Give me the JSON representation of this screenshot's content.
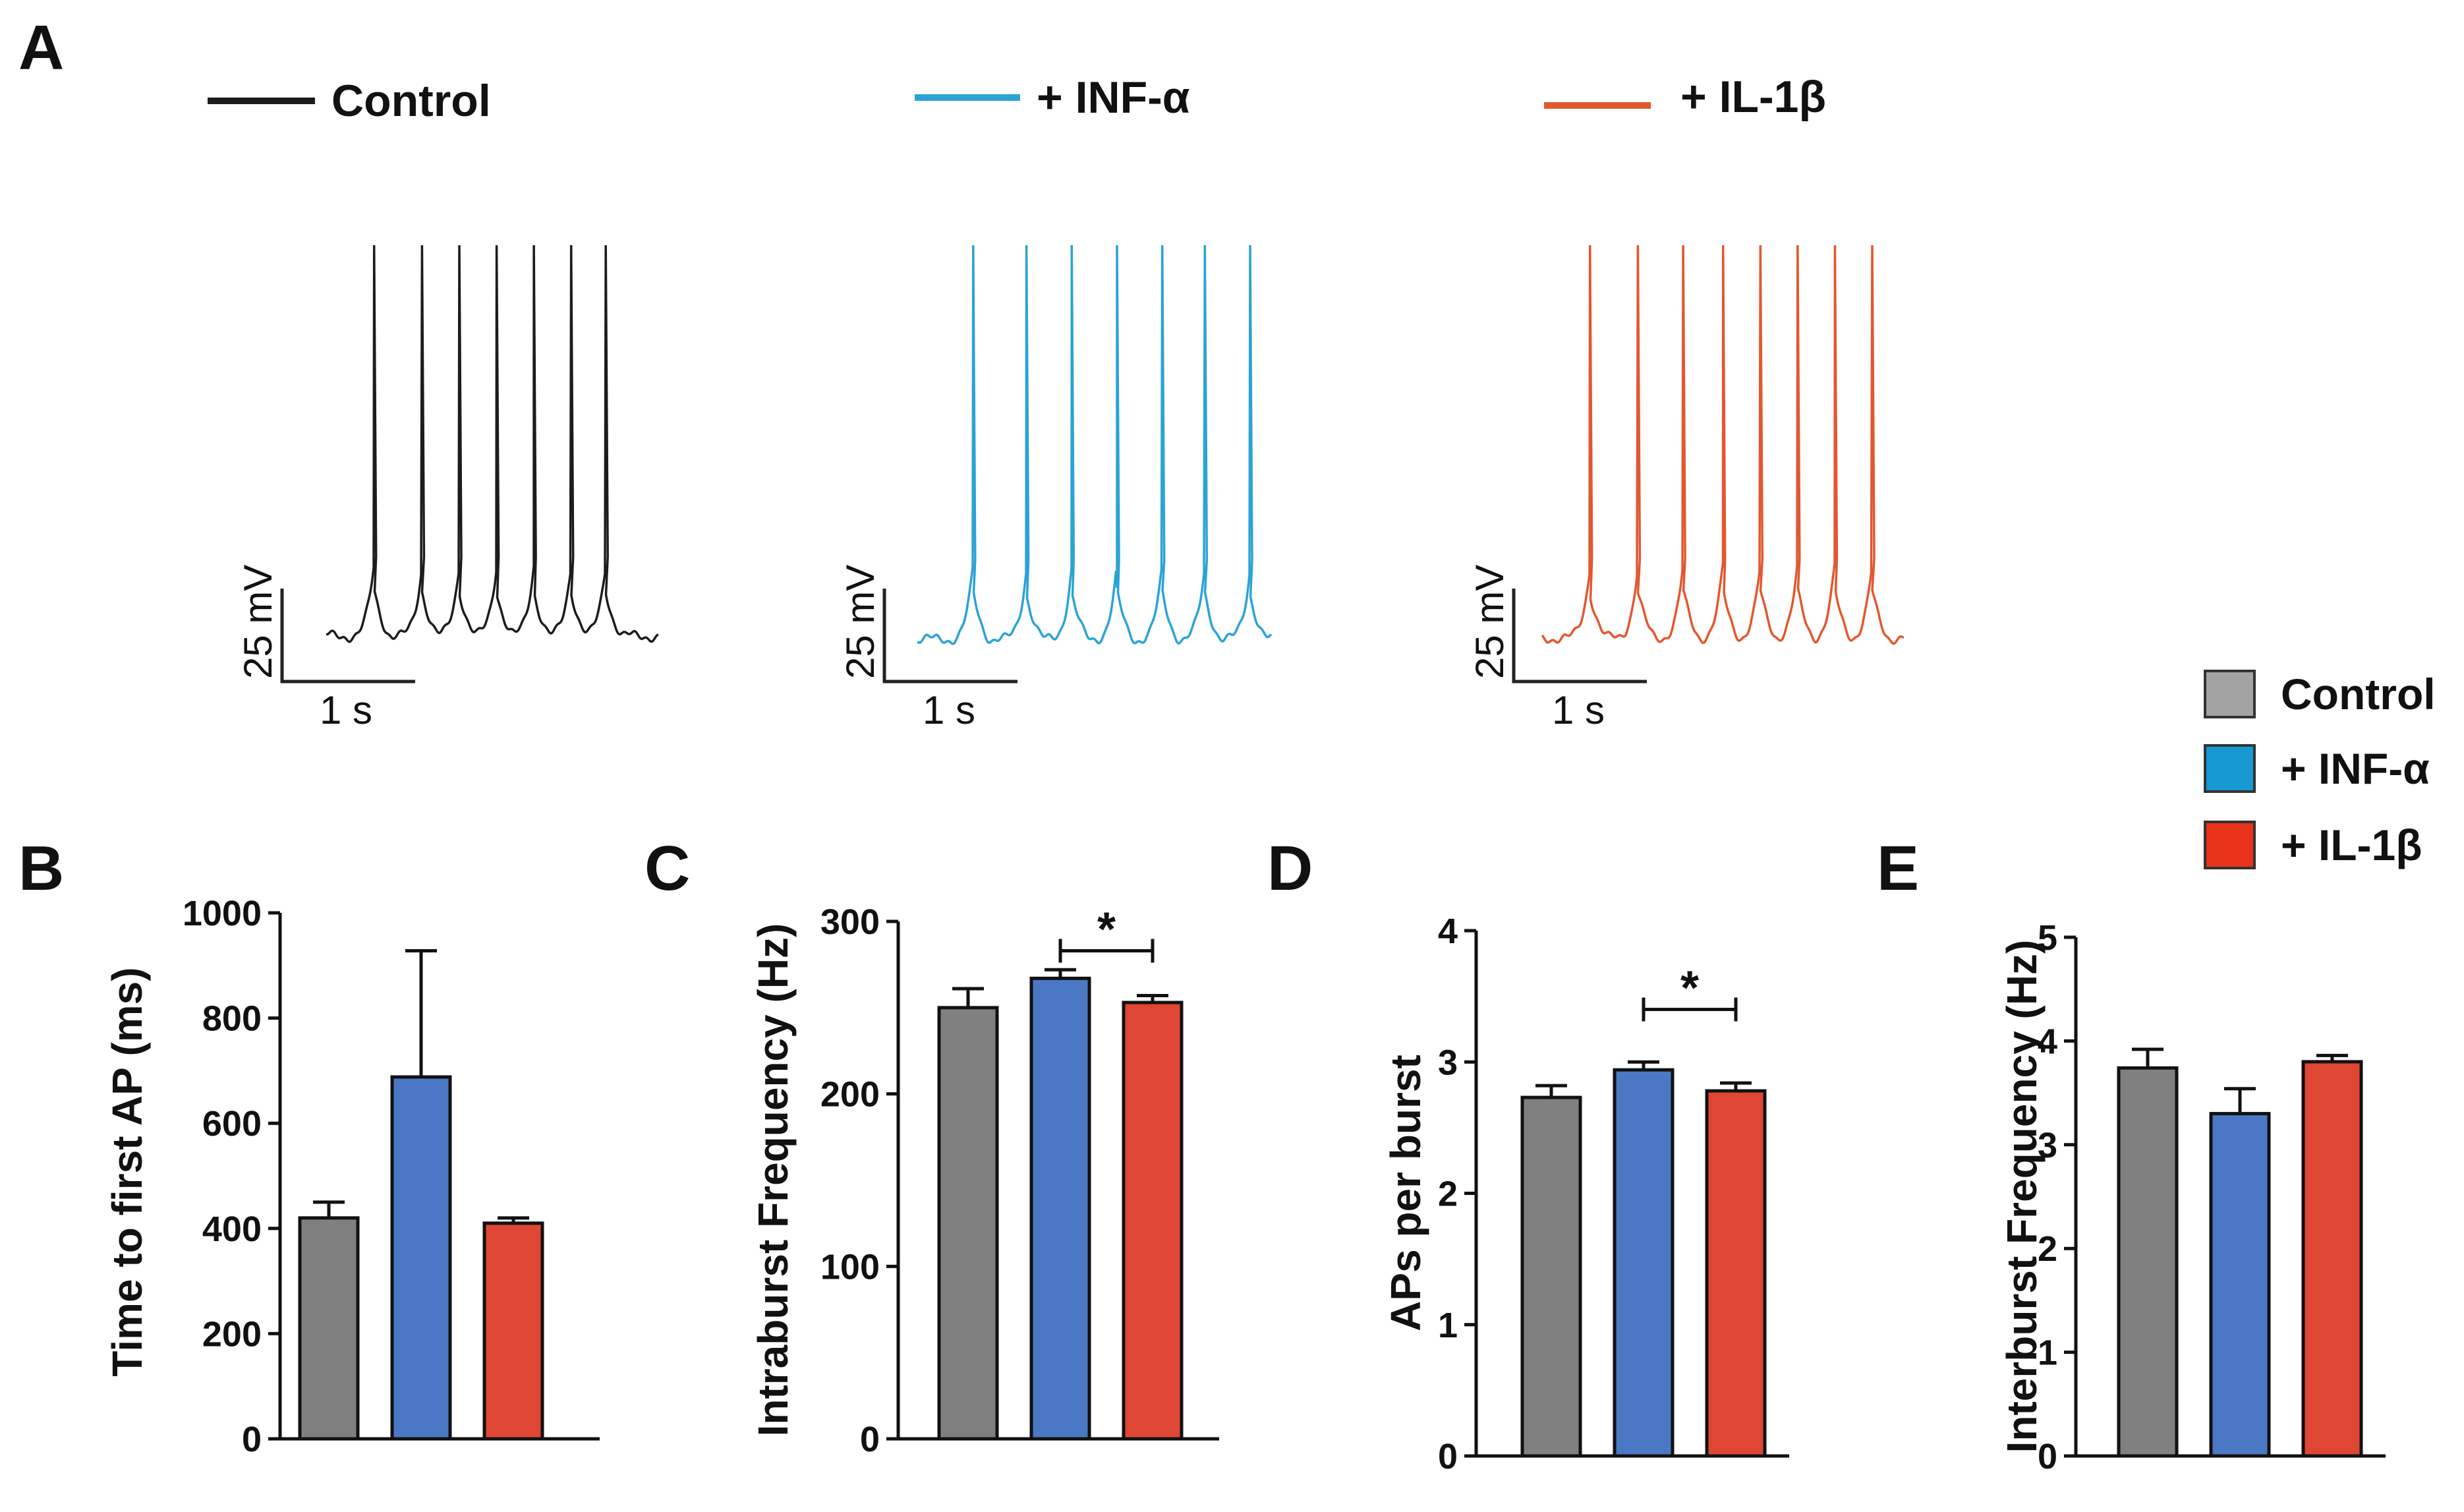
{
  "panel_labels": {
    "a": "A",
    "b": "B",
    "c": "C",
    "d": "D",
    "e": "E"
  },
  "colors": {
    "trace_control": "#1c1c1c",
    "trace_inf": "#2ba3d6",
    "trace_il": "#e3572f",
    "bar_control": "#808080",
    "bar_inf": "#4a78c4",
    "bar_il": "#e04634",
    "legend_control": "#a3a3a3",
    "legend_inf": "#1699d3",
    "legend_il": "#e83219"
  },
  "traces": {
    "legend": [
      {
        "label": "Control",
        "color_key": "trace_control"
      },
      {
        "label": "+ INF-α",
        "color_key": "trace_inf"
      },
      {
        "label": "+ IL-1β",
        "color_key": "trace_il"
      }
    ],
    "scale_bar": {
      "voltage": "25 mV",
      "time": "1 s"
    },
    "spike_times_s": {
      "control": [
        0.36,
        0.72,
        1.0,
        1.28,
        1.56,
        1.84,
        2.1
      ],
      "inf": [
        0.42,
        0.82,
        1.16,
        1.5,
        1.84,
        2.16,
        2.5
      ],
      "il": [
        0.36,
        0.72,
        1.06,
        1.36,
        1.64,
        1.92,
        2.2,
        2.48
      ]
    }
  },
  "bar_legend": [
    {
      "label": "Control",
      "color_key": "legend_control"
    },
    {
      "label": "+ INF-α",
      "color_key": "legend_inf"
    },
    {
      "label": "+ IL-1β",
      "color_key": "legend_il"
    }
  ],
  "chart_data": [
    {
      "panel": "B",
      "type": "bar",
      "categories": [
        "Control",
        "+ INF-α",
        "+ IL-1β"
      ],
      "values": [
        420,
        688,
        410
      ],
      "errors": [
        30,
        240,
        10
      ],
      "ylabel": "Time to first AP (ms)",
      "ylim": [
        0,
        1000
      ],
      "yticks": [
        "0",
        "200",
        "400",
        "600",
        "800",
        "1000"
      ],
      "ytick_values": [
        0,
        200,
        400,
        600,
        800,
        1000
      ],
      "significance": null
    },
    {
      "panel": "C",
      "type": "bar",
      "categories": [
        "Control",
        "+ INF-α",
        "+ IL-1β"
      ],
      "values": [
        250,
        267,
        253
      ],
      "errors": [
        11,
        5,
        4
      ],
      "ylabel": "Intraburst Frequency (Hz)",
      "ylim": [
        0,
        300
      ],
      "yticks": [
        "0",
        "100",
        "200",
        "300"
      ],
      "ytick_values": [
        0,
        100,
        200,
        300
      ],
      "significance": {
        "from": 1,
        "to": 2,
        "y": 283,
        "label": "*"
      }
    },
    {
      "panel": "D",
      "type": "bar",
      "categories": [
        "Control",
        "+ INF-α",
        "+ IL-1β"
      ],
      "values": [
        2.73,
        2.94,
        2.78
      ],
      "errors": [
        0.09,
        0.06,
        0.06
      ],
      "ylabel": "APs per burst",
      "ylim": [
        0,
        4
      ],
      "yticks": [
        "0",
        "1",
        "2",
        "3",
        "4"
      ],
      "ytick_values": [
        0,
        1,
        2,
        3,
        4
      ],
      "significance": {
        "from": 1,
        "to": 2,
        "y": 3.4,
        "label": "*"
      }
    },
    {
      "panel": "E",
      "type": "bar",
      "categories": [
        "Control",
        "+ INF-α",
        "+ IL-1β"
      ],
      "values": [
        3.74,
        3.3,
        3.8
      ],
      "errors": [
        0.18,
        0.24,
        0.06
      ],
      "ylabel": "Interburst Frequency (Hz)",
      "ylim": [
        0,
        5
      ],
      "yticks": [
        "0",
        "1",
        "2",
        "3",
        "4",
        "5"
      ],
      "ytick_values": [
        0,
        1,
        2,
        3,
        4,
        5
      ],
      "significance": null
    }
  ]
}
